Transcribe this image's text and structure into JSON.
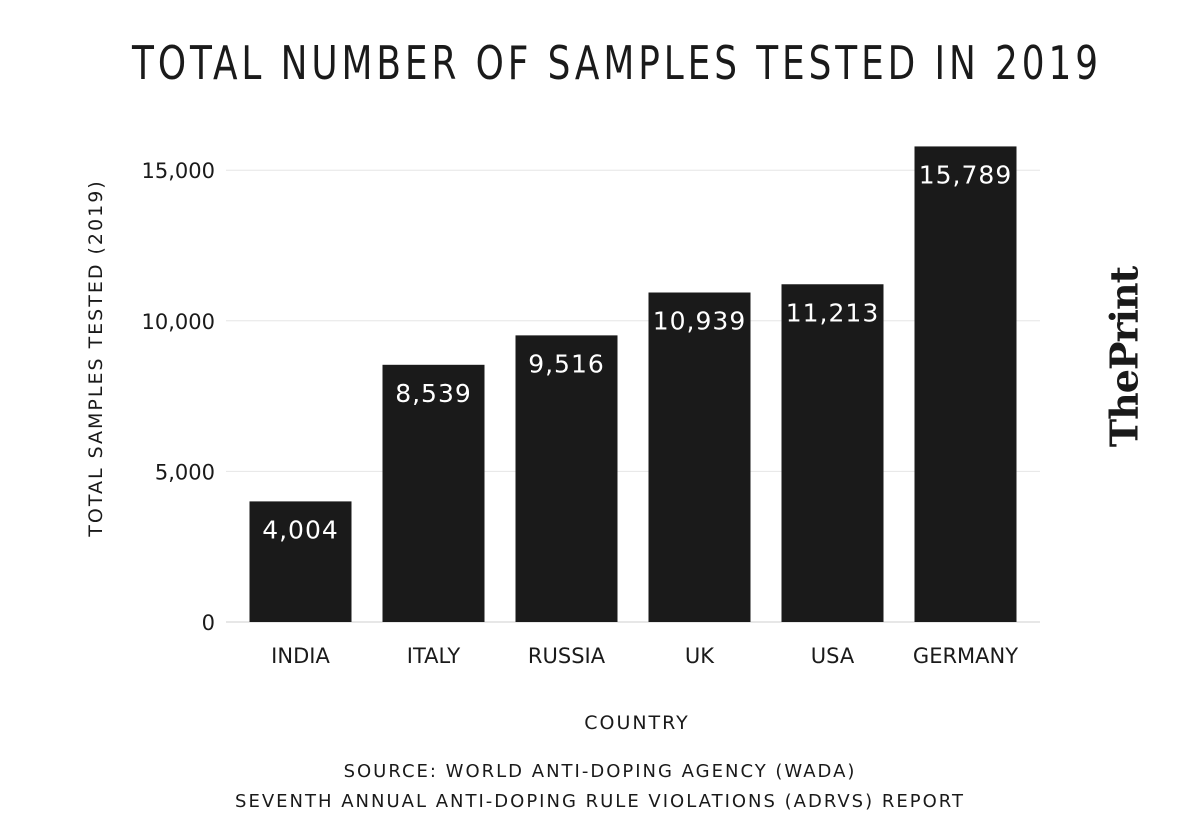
{
  "chart_data": {
    "type": "bar",
    "title": "TOTAL NUMBER OF SAMPLES TESTED IN 2019",
    "categories": [
      "INDIA",
      "ITALY",
      "RUSSIA",
      "UK",
      "USA",
      "GERMANY"
    ],
    "values": [
      4004,
      8539,
      9516,
      10939,
      11213,
      15789
    ],
    "value_labels": [
      "4,004",
      "8,539",
      "9,516",
      "10,939",
      "11,213",
      "15,789"
    ],
    "xlabel": "COUNTRY",
    "ylabel": "TOTAL SAMPLES TESTED (2019)",
    "ylim": [
      0,
      15789
    ],
    "yticks": [
      0,
      5000,
      10000,
      15000
    ],
    "ytick_labels": [
      "0",
      "5,000",
      "10,000",
      "15,000"
    ],
    "grid": true,
    "bar_color": "#1a1a1a",
    "grid_color": "#e6e6e6"
  },
  "source": {
    "line1": "SOURCE: WORLD ANTI-DOPING AGENCY (WADA)",
    "line2": "SEVENTH ANNUAL ANTI-DOPING RULE VIOLATIONS (ADRVS) REPORT"
  },
  "brand": {
    "logo_text": "ThePrint"
  }
}
